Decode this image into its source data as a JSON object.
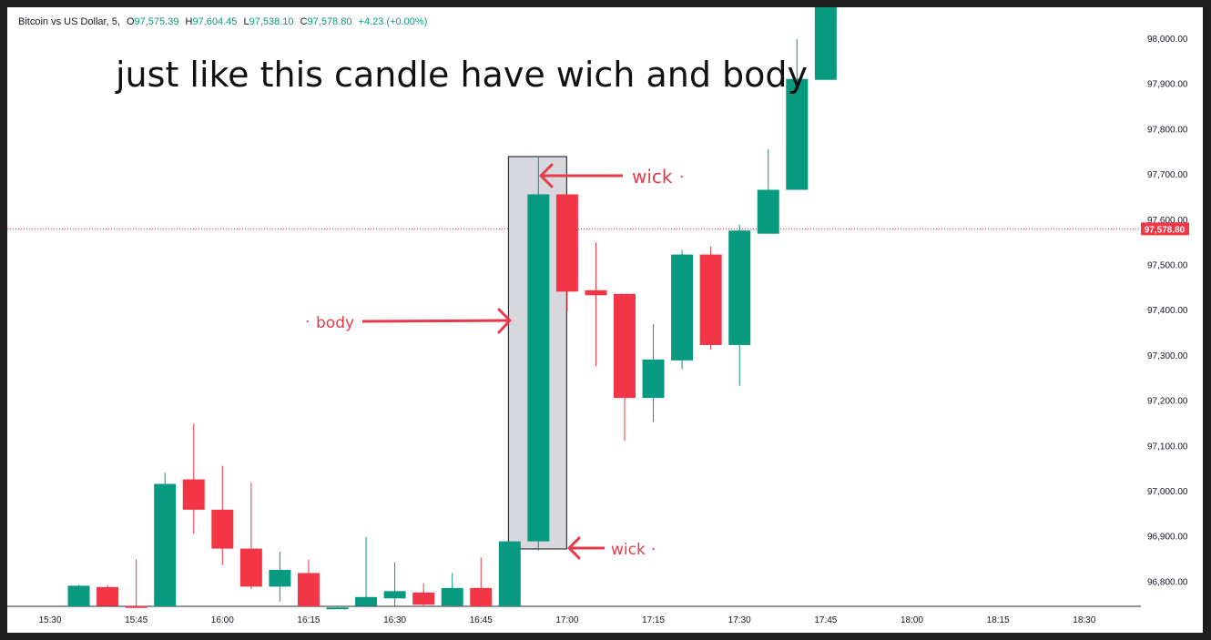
{
  "legend": {
    "symbol": "Bitcoin vs US Dollar, 5,",
    "o_label": "O",
    "o": "97,575.39",
    "h_label": "H",
    "h": "97,604.45",
    "l_label": "L",
    "l": "97,538.10",
    "c_label": "C",
    "c": "97,578.80",
    "change": "+4.23 (+0.00%)"
  },
  "annotation_title": "just like this candle have wich and body",
  "annotations": {
    "wick_top": "wick",
    "wick_bottom": "wick",
    "body": "body",
    "dot": "·"
  },
  "colors": {
    "up": "#089981",
    "down": "#f23645",
    "annotation": "#e8394a",
    "price_line": "#f23645"
  },
  "chart_data": {
    "type": "candlestick",
    "title": "Bitcoin vs US Dollar, 5",
    "interval": "5",
    "current_price": 97578.8,
    "current_price_label": "97,578.80",
    "ylim": [
      96740,
      98070
    ],
    "y_ticks": [
      96800,
      96900,
      97000,
      97100,
      97200,
      97300,
      97400,
      97500,
      97600,
      97700,
      97800,
      97900,
      98000
    ],
    "y_tick_labels": [
      "96,800.00",
      "96,900.00",
      "97,000.00",
      "97,100.00",
      "97,200.00",
      "97,300.00",
      "97,400.00",
      "97,500.00",
      "97,600.00",
      "97,700.00",
      "97,800.00",
      "97,900.00",
      "98,000.00"
    ],
    "x_ticks": [
      "15:30",
      "15:45",
      "16:00",
      "16:15",
      "16:30",
      "16:45",
      "17:00",
      "17:15",
      "17:30",
      "17:45",
      "18:00",
      "18:15",
      "18:30"
    ],
    "candles": [
      {
        "t": "15:35",
        "o": 96740,
        "h": 96792,
        "l": 96740,
        "c": 96790
      },
      {
        "t": "15:40",
        "o": 96787,
        "h": 96792,
        "l": 96742,
        "c": 96745
      },
      {
        "t": "15:45",
        "o": 96745,
        "h": 96848,
        "l": 96740,
        "c": 96742
      },
      {
        "t": "15:50",
        "o": 96742,
        "h": 97040,
        "l": 96740,
        "c": 97015
      },
      {
        "t": "15:55",
        "o": 97025,
        "h": 97148,
        "l": 96905,
        "c": 96958
      },
      {
        "t": "16:00",
        "o": 96958,
        "h": 97055,
        "l": 96835,
        "c": 96872
      },
      {
        "t": "16:05",
        "o": 96872,
        "h": 97018,
        "l": 96782,
        "c": 96788
      },
      {
        "t": "16:10",
        "o": 96788,
        "h": 96865,
        "l": 96755,
        "c": 96825
      },
      {
        "t": "16:15",
        "o": 96818,
        "h": 96848,
        "l": 96740,
        "c": 96742
      },
      {
        "t": "16:20",
        "o": 96742,
        "h": 96742,
        "l": 96740,
        "c": 96742
      },
      {
        "t": "16:25",
        "o": 96745,
        "h": 96898,
        "l": 96740,
        "c": 96765
      },
      {
        "t": "16:30",
        "o": 96762,
        "h": 96842,
        "l": 96740,
        "c": 96778
      },
      {
        "t": "16:35",
        "o": 96775,
        "h": 96796,
        "l": 96742,
        "c": 96748
      },
      {
        "t": "16:40",
        "o": 96746,
        "h": 96818,
        "l": 96740,
        "c": 96785
      },
      {
        "t": "16:45",
        "o": 96785,
        "h": 96852,
        "l": 96740,
        "c": 96742
      },
      {
        "t": "16:50",
        "o": 96742,
        "h": 96888,
        "l": 96740,
        "c": 96888
      },
      {
        "t": "16:55",
        "o": 96888,
        "h": 97740,
        "l": 96868,
        "c": 97655
      },
      {
        "t": "17:00",
        "o": 97655,
        "h": 97655,
        "l": 97395,
        "c": 97440
      },
      {
        "t": "17:05",
        "o": 97443,
        "h": 97548,
        "l": 97275,
        "c": 97432
      },
      {
        "t": "17:10",
        "o": 97435,
        "h": 97435,
        "l": 97110,
        "c": 97205
      },
      {
        "t": "17:15",
        "o": 97205,
        "h": 97368,
        "l": 97152,
        "c": 97290
      },
      {
        "t": "17:20",
        "o": 97288,
        "h": 97532,
        "l": 97268,
        "c": 97522
      },
      {
        "t": "17:25",
        "o": 97522,
        "h": 97540,
        "l": 97312,
        "c": 97322
      },
      {
        "t": "17:30",
        "o": 97322,
        "h": 97588,
        "l": 97232,
        "c": 97575
      },
      {
        "t": "17:35",
        "o": 97568,
        "h": 97755,
        "l": 97568,
        "c": 97665
      },
      {
        "t": "17:40",
        "o": 97665,
        "h": 97998,
        "l": 97665,
        "c": 97910
      },
      {
        "t": "17:45",
        "o": 97908,
        "h": 98070,
        "l": 97908,
        "c": 98070
      }
    ]
  }
}
